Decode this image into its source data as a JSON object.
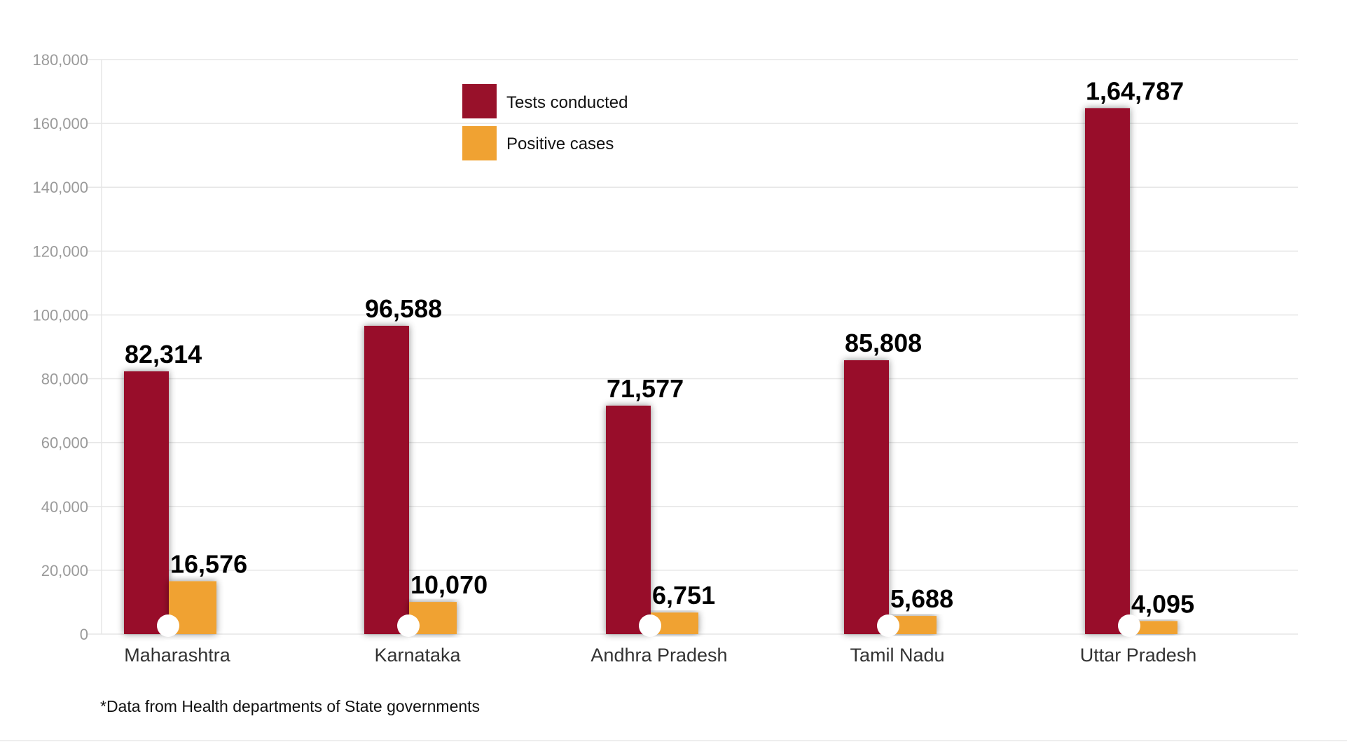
{
  "chart_data": {
    "type": "bar",
    "title": "",
    "xlabel": "",
    "ylabel": "",
    "ylim": [
      0,
      180000
    ],
    "yticks": [
      0,
      20000,
      40000,
      60000,
      80000,
      100000,
      120000,
      140000,
      160000,
      180000
    ],
    "ytick_labels": [
      "0",
      "20,000",
      "40,000",
      "60,000",
      "80,000",
      "100,000",
      "120,000",
      "140,000",
      "160,000",
      "180,000"
    ],
    "grid": true,
    "legend_position": "top-center",
    "categories": [
      "Maharashtra",
      "Karnataka",
      "Andhra Pradesh",
      "Tamil Nadu",
      "Uttar Pradesh"
    ],
    "series": [
      {
        "name": "Tests conducted",
        "color": "#98112a",
        "values": [
          82314,
          96588,
          71577,
          85808,
          164787
        ],
        "labels": [
          "82,314",
          "96,588",
          "71,577",
          "85,808",
          "1,64,787"
        ]
      },
      {
        "name": "Positive cases",
        "color": "#f0a232",
        "values": [
          16576,
          10070,
          6751,
          5688,
          4095
        ],
        "labels": [
          "16,576",
          "10,070",
          "6,751",
          "5,688",
          "4,095"
        ]
      }
    ],
    "footnote": "*Data from Health departments of State governments"
  }
}
